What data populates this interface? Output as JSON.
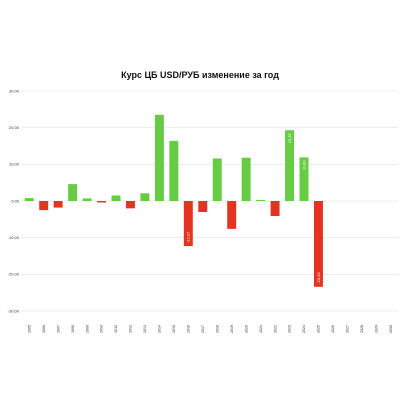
{
  "chart_data": {
    "type": "bar",
    "title": "Курс ЦБ USD/РУБ изменение за год",
    "xlabel": "",
    "ylabel": "",
    "ylim": [
      -30,
      30
    ],
    "yticks": [
      "30,00",
      "20,00",
      "10,00",
      "0,00",
      "-10,00",
      "-20,00",
      "-30,00"
    ],
    "ytick_values": [
      30,
      20,
      10,
      0,
      -10,
      -20,
      -30
    ],
    "grid": true,
    "legend": "none",
    "colors": {
      "positive": "#66cc44",
      "negative": "#e53322"
    },
    "categories": [
      "2005",
      "2006",
      "2007",
      "2008",
      "2009",
      "2010",
      "2011",
      "2012",
      "2013",
      "2014",
      "2015",
      "2016",
      "2017",
      "2018",
      "2019",
      "2020",
      "2021",
      "2022",
      "2023",
      "2024",
      "2025",
      "2026",
      "2027",
      "2028",
      "2029",
      "2030"
    ],
    "values": [
      0.8,
      -2.5,
      -1.8,
      4.6,
      0.7,
      -0.4,
      1.5,
      -2.0,
      2.1,
      23.5,
      16.4,
      -12.3,
      -3.0,
      11.6,
      -7.6,
      11.8,
      0.3,
      -4.1,
      19.3,
      11.9,
      -23.4,
      null,
      null,
      null,
      null,
      null
    ],
    "data_labels": {
      "2016": "-12,27",
      "2023": "19,35",
      "2024": "11,89",
      "2025": "-23,43"
    }
  }
}
